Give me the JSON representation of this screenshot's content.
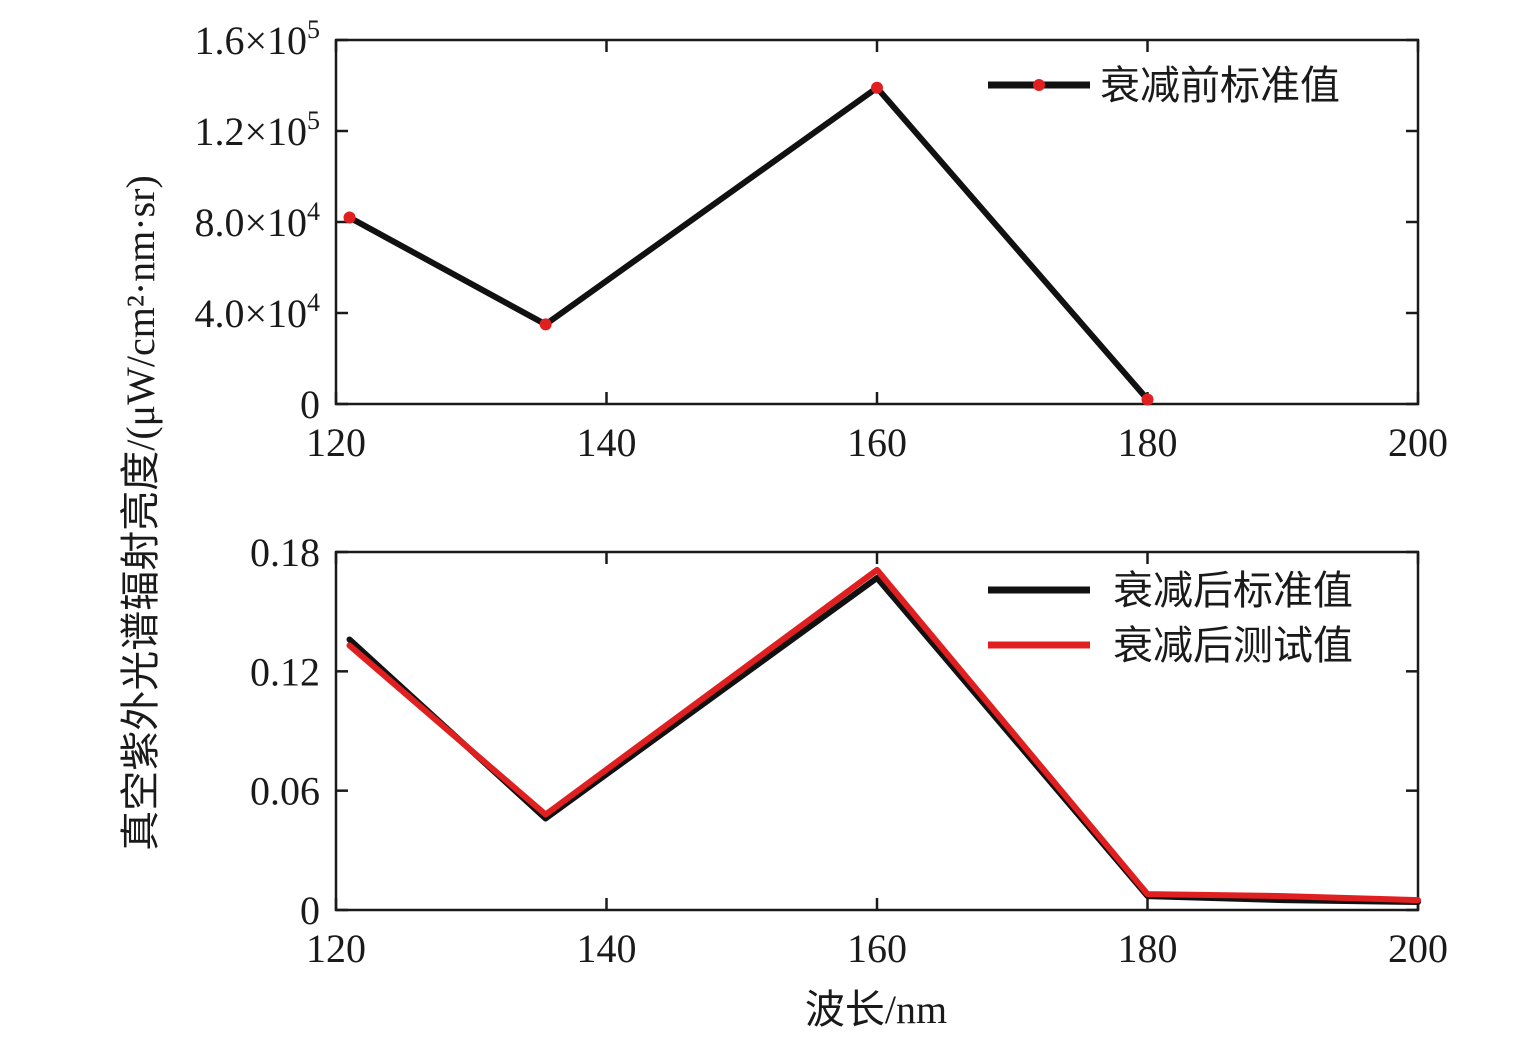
{
  "figure": {
    "ylabel": "真空紫外光谱辐射亮度/(μW/cm²·nm·sr)"
  },
  "chart_data": [
    {
      "type": "line",
      "xlabel": "",
      "xlim": [
        120,
        200
      ],
      "ylim": [
        0,
        160000
      ],
      "xticks": [
        120,
        140,
        160,
        180,
        200
      ],
      "xtick_labels": [
        "120",
        "140",
        "160",
        "180",
        "200"
      ],
      "yticks": [
        0,
        40000,
        80000,
        120000,
        160000
      ],
      "ytick_labels": [
        {
          "mantissa": "0",
          "exp": ""
        },
        {
          "mantissa": "4.0×10",
          "exp": "4"
        },
        {
          "mantissa": "8.0×10",
          "exp": "4"
        },
        {
          "mantissa": "1.2×10",
          "exp": "5"
        },
        {
          "mantissa": "1.6×10",
          "exp": "5"
        }
      ],
      "grid": false,
      "legend_position": "top-right",
      "series": [
        {
          "name": "衰减前标准值",
          "line_color": "#111111",
          "marker_color": "#e02020",
          "x": [
            121,
            135.5,
            160,
            180
          ],
          "y": [
            82000,
            35000,
            139000,
            2000
          ]
        }
      ]
    },
    {
      "type": "line",
      "xlabel": "波长/nm",
      "xlim": [
        120,
        200
      ],
      "ylim": [
        0,
        0.18
      ],
      "xticks": [
        120,
        140,
        160,
        180,
        200
      ],
      "xtick_labels": [
        "120",
        "140",
        "160",
        "180",
        "200"
      ],
      "yticks": [
        0,
        0.06,
        0.12,
        0.18
      ],
      "ytick_labels": [
        {
          "mantissa": "0",
          "exp": ""
        },
        {
          "mantissa": "0.06",
          "exp": ""
        },
        {
          "mantissa": "0.12",
          "exp": ""
        },
        {
          "mantissa": "0.18",
          "exp": ""
        }
      ],
      "grid": false,
      "legend_position": "top-right",
      "series": [
        {
          "name": "衰减后标准值",
          "line_color": "#111111",
          "x": [
            121,
            135.5,
            160,
            180,
            190,
            200
          ],
          "y": [
            0.136,
            0.046,
            0.167,
            0.007,
            0.005,
            0.004
          ]
        },
        {
          "name": "衰减后测试值",
          "line_color": "#e02020",
          "x": [
            121,
            135.5,
            160,
            180,
            190,
            200
          ],
          "y": [
            0.133,
            0.048,
            0.171,
            0.008,
            0.007,
            0.005
          ]
        }
      ]
    }
  ]
}
